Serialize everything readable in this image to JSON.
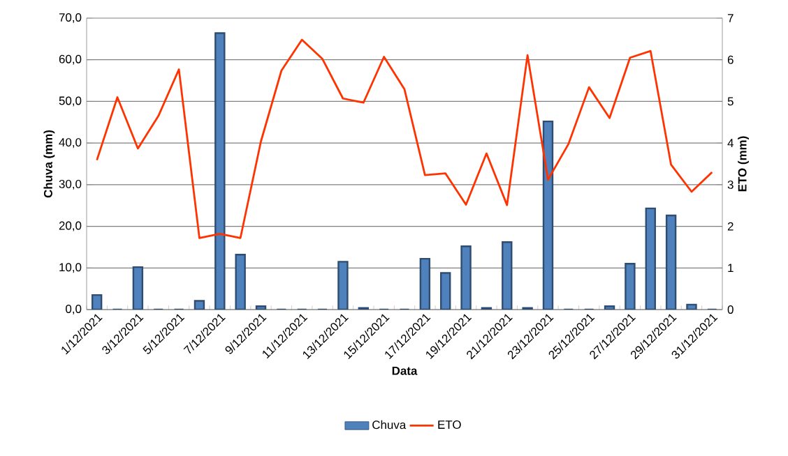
{
  "chart_data": {
    "type": "bar",
    "xlabel": "Data",
    "ylabel": "Chuva (mm)",
    "y2label": "ETO (mm)",
    "categories": [
      "1/12/2021",
      null,
      "3/12/2021",
      null,
      "5/12/2021",
      null,
      "7/12/2021",
      null,
      "9/12/2021",
      null,
      "11/12/2021",
      null,
      "13/12/2021",
      null,
      "15/12/2021",
      null,
      "17/12/2021",
      null,
      "19/12/2021",
      null,
      "21/12/2021",
      null,
      "23/12/2021",
      null,
      "25/12/2021",
      null,
      "27/12/2021",
      null,
      "29/12/2021",
      null,
      "31/12/2021"
    ],
    "series": [
      {
        "name": "Chuva",
        "color": "#4f81bd",
        "values": [
          3.5,
          0,
          10.2,
          0,
          0,
          2.1,
          66.4,
          13.2,
          0.8,
          0,
          0,
          0,
          11.5,
          0.4,
          0,
          0,
          12.2,
          8.8,
          15.2,
          0.4,
          16.2,
          0.4,
          45.2,
          0,
          0,
          0.8,
          11.0,
          24.3,
          22.6,
          1.2,
          0
        ]
      },
      {
        "name": "ETO",
        "type": "line",
        "axis": "y2",
        "color": "#ff3300",
        "values": [
          3.59,
          5.1,
          3.87,
          4.65,
          5.77,
          1.72,
          1.82,
          1.72,
          4.04,
          5.74,
          6.48,
          6.02,
          5.07,
          4.97,
          6.07,
          5.29,
          3.23,
          3.27,
          2.52,
          3.75,
          2.51,
          6.11,
          3.12,
          3.98,
          5.34,
          4.6,
          6.05,
          6.21,
          3.48,
          2.83,
          3.3
        ]
      }
    ],
    "ylim": [
      0,
      70
    ],
    "yticks": [
      {
        "value": 0,
        "label": "0,0"
      },
      {
        "value": 10,
        "label": "10,0"
      },
      {
        "value": 20,
        "label": "20,0"
      },
      {
        "value": 30,
        "label": "30,0"
      },
      {
        "value": 40,
        "label": "40,0"
      },
      {
        "value": 50,
        "label": "50,0"
      },
      {
        "value": 60,
        "label": "60,0"
      },
      {
        "value": 70,
        "label": "70,0"
      }
    ],
    "y2lim": [
      0,
      7
    ],
    "y2ticks": [
      0,
      1,
      2,
      3,
      4,
      5,
      6,
      7
    ],
    "grid": "y",
    "legend": "bottom",
    "marker": "none",
    "line_style": "solid"
  }
}
